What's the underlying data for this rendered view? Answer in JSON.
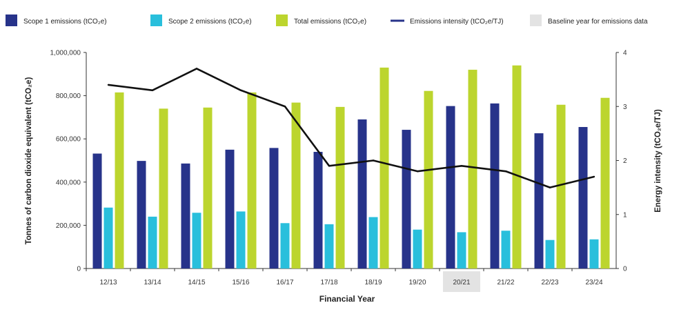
{
  "chart_data": {
    "type": "bar",
    "categories": [
      "12/13",
      "13/14",
      "14/15",
      "15/16",
      "16/17",
      "17/18",
      "18/19",
      "19/20",
      "20/21",
      "21/22",
      "22/23",
      "23/24"
    ],
    "series": [
      {
        "name": "Scope 1 emissions (tCO₂e)",
        "kind": "bar",
        "axis": "left",
        "color": "#27338a",
        "values": [
          532000,
          498000,
          486000,
          550000,
          558000,
          540000,
          690000,
          642000,
          752000,
          764000,
          626000,
          655000
        ]
      },
      {
        "name": "Scope 2 emissions (tCO₂e)",
        "kind": "bar",
        "axis": "left",
        "color": "#29bfdc",
        "values": [
          282000,
          240000,
          258000,
          264000,
          210000,
          205000,
          238000,
          180000,
          168000,
          175000,
          132000,
          135000
        ]
      },
      {
        "name": "Total emissions (tCO₂e)",
        "kind": "bar",
        "axis": "left",
        "color": "#bcd52e",
        "values": [
          815000,
          740000,
          745000,
          815000,
          768000,
          748000,
          930000,
          822000,
          920000,
          940000,
          758000,
          790000
        ]
      },
      {
        "name": "Emissions intensity (tCO₂e/TJ)",
        "kind": "line",
        "axis": "right",
        "color": "#111111",
        "values": [
          3.4,
          3.3,
          3.7,
          3.3,
          3.0,
          1.9,
          2.0,
          1.8,
          1.9,
          1.8,
          1.5,
          1.7
        ]
      }
    ],
    "baseline": {
      "label": "Baseline year for emissions data",
      "category": "20/21",
      "color": "#e3e3e3"
    },
    "xlabel": "Financial Year",
    "ylabel": "Tonnes of carbon dioxide equivalent (tCO₂e)",
    "y2label": "Energy intensity (tCO₂e/TJ)",
    "ylim": [
      0,
      1000000
    ],
    "y2lim": [
      0,
      4
    ],
    "yticks": [
      0,
      200000,
      400000,
      600000,
      800000,
      1000000
    ],
    "yticklabels": [
      "0",
      "200,000",
      "400,000",
      "600,000",
      "800,000",
      "1,000,000"
    ],
    "y2ticks": [
      0,
      1,
      2,
      3,
      4
    ],
    "y2ticklabels": [
      "0",
      "1",
      "2",
      "3",
      "4"
    ],
    "legend_position": "top",
    "grid": false
  }
}
